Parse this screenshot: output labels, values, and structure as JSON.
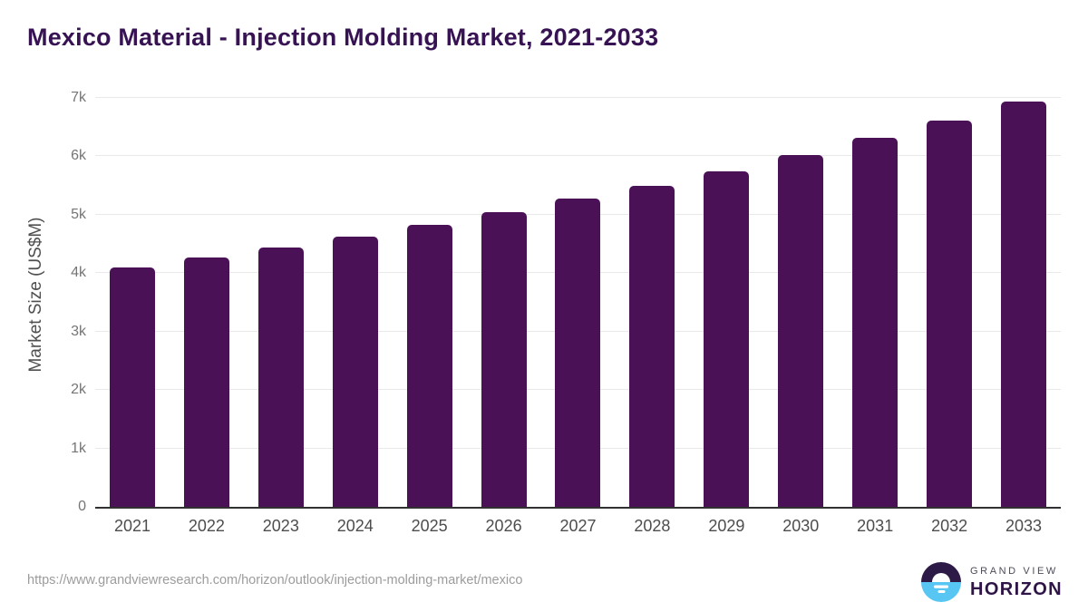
{
  "page": {
    "title": "Mexico Material - Injection Molding Market, 2021-2033"
  },
  "chart_data": {
    "type": "bar",
    "title": "Mexico Material - Injection Molding Market, 2021-2033",
    "categories": [
      "2021",
      "2022",
      "2023",
      "2024",
      "2025",
      "2026",
      "2027",
      "2028",
      "2029",
      "2030",
      "2031",
      "2032",
      "2033"
    ],
    "values": [
      4100,
      4270,
      4440,
      4630,
      4830,
      5040,
      5270,
      5500,
      5750,
      6030,
      6320,
      6610,
      6940
    ],
    "xlabel": "",
    "ylabel": "Market Size (US$M)",
    "ylim": [
      0,
      7000
    ],
    "yticks": [
      0,
      1000,
      2000,
      3000,
      4000,
      5000,
      6000,
      7000
    ],
    "ytick_labels": [
      "0",
      "1k",
      "2k",
      "3k",
      "4k",
      "5k",
      "6k",
      "7k"
    ],
    "grid": true,
    "legend": false,
    "bar_color": "#4A1157"
  },
  "footer": {
    "source_url": "https://www.grandviewresearch.com/horizon/outlook/injection-molding-market/mexico",
    "logo": {
      "top": "GRAND VIEW",
      "bottom": "HORIZON"
    }
  },
  "colors": {
    "title": "#371353",
    "bar": "#4A1157",
    "gridline": "#E9E9E9",
    "axis_line": "#313131",
    "y_tick": "#757575",
    "x_label": "#4D4D4D",
    "url_text": "#9C9C9C",
    "logo_purple": "#2E1A46",
    "logo_blue": "#57C6F2"
  }
}
